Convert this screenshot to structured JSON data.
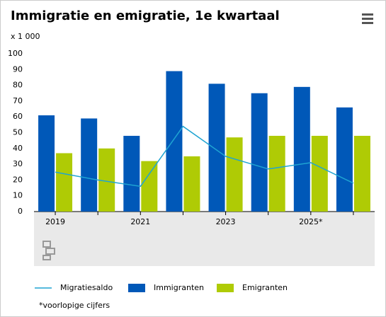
{
  "chart_data": {
    "type": "bar",
    "title": "Immigratie en emigratie, 1e kwartaal",
    "unit_label": "x 1 000",
    "categories": [
      "2019",
      null,
      "2021",
      null,
      "2023",
      null,
      "2025*",
      null
    ],
    "series": [
      {
        "name": "Migratiesaldo",
        "type": "line",
        "color": "#1fa4d2",
        "values": [
          25,
          20,
          16,
          54,
          35,
          27,
          31,
          18
        ]
      },
      {
        "name": "Immigranten",
        "type": "bar",
        "color": "#0058b8",
        "values": [
          61,
          59,
          48,
          89,
          81,
          75,
          79,
          66
        ]
      },
      {
        "name": "Emigranten",
        "type": "bar",
        "color": "#afcb05",
        "values": [
          37,
          40,
          32,
          35,
          47,
          48,
          48,
          48
        ]
      }
    ],
    "ylim": [
      0,
      100
    ],
    "yticks": [
      0,
      10,
      20,
      30,
      40,
      50,
      60,
      70,
      80,
      90,
      100
    ],
    "grid": false,
    "footnote": "*voorlopige cijfers"
  }
}
